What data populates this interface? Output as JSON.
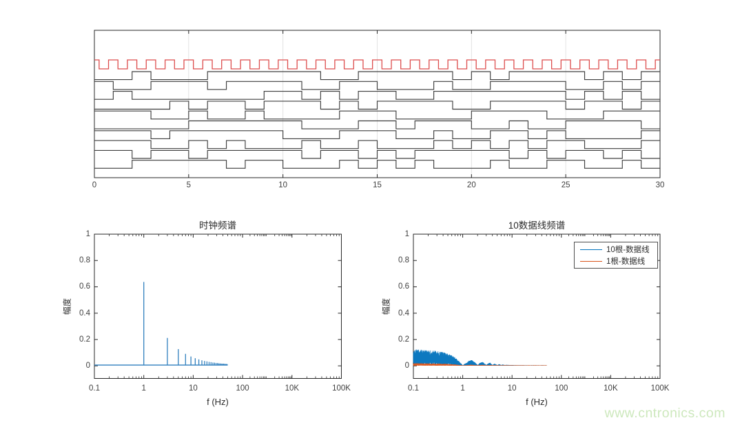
{
  "watermark": "www.cntronics.com",
  "colors": {
    "clock_red": "#dd4c4c",
    "data_black": "#3d3d3d",
    "spectrum_blue": "#2f7fbe",
    "matlab_blue": "#0072BD",
    "matlab_orange": "#D95319",
    "grid_gray": "#e2e2e2",
    "axis_dark": "#262626",
    "tick_text": "#3f3f3f",
    "watermark_green": "#cde8bd"
  },
  "top_plot": {
    "x_tick_labels": [
      "0",
      "5",
      "10",
      "15",
      "20",
      "25",
      "30"
    ],
    "x_ticks": [
      0,
      5,
      10,
      15,
      20,
      25,
      30
    ],
    "x_range": [
      0,
      30
    ],
    "clock": {
      "period": 1,
      "duty": 0.5,
      "rise_phase": 0.75,
      "color": "red"
    },
    "signals_bits": [
      [
        0,
        0,
        1,
        0,
        0,
        0,
        1,
        1,
        1,
        1,
        1,
        1,
        0,
        0,
        1,
        1,
        1,
        1,
        1,
        0,
        1,
        0,
        1,
        1,
        1,
        1,
        0,
        1,
        0,
        1
      ],
      [
        1,
        0,
        0,
        1,
        1,
        1,
        0,
        1,
        1,
        1,
        1,
        0,
        0,
        1,
        1,
        0,
        0,
        0,
        1,
        0,
        0,
        1,
        1,
        1,
        1,
        0,
        0,
        1,
        0,
        1
      ],
      [
        0,
        1,
        0,
        0,
        0,
        0,
        0,
        0,
        0,
        1,
        1,
        0,
        1,
        0,
        1,
        1,
        0,
        0,
        1,
        1,
        1,
        1,
        1,
        1,
        1,
        0,
        1,
        0,
        1,
        0
      ],
      [
        0,
        0,
        0,
        0,
        1,
        0,
        1,
        1,
        0,
        1,
        1,
        1,
        0,
        1,
        0,
        1,
        1,
        1,
        1,
        0,
        0,
        1,
        1,
        1,
        1,
        0,
        1,
        1,
        0,
        1
      ],
      [
        1,
        1,
        1,
        0,
        0,
        1,
        0,
        0,
        1,
        0,
        0,
        0,
        0,
        1,
        1,
        1,
        0,
        0,
        0,
        0,
        1,
        1,
        1,
        1,
        0,
        0,
        0,
        1,
        1,
        1
      ],
      [
        0,
        0,
        0,
        0,
        0,
        1,
        1,
        1,
        1,
        1,
        1,
        0,
        0,
        0,
        1,
        1,
        0,
        1,
        1,
        1,
        0,
        0,
        1,
        0,
        0,
        1,
        1,
        1,
        1,
        0
      ],
      [
        1,
        1,
        1,
        0,
        1,
        1,
        1,
        1,
        1,
        1,
        0,
        0,
        0,
        1,
        1,
        1,
        0,
        0,
        1,
        0,
        0,
        1,
        1,
        0,
        1,
        0,
        0,
        0,
        0,
        1
      ],
      [
        1,
        1,
        1,
        0,
        0,
        1,
        0,
        1,
        0,
        0,
        0,
        1,
        0,
        0,
        1,
        0,
        0,
        0,
        1,
        0,
        1,
        0,
        1,
        0,
        1,
        1,
        0,
        0,
        0,
        1
      ],
      [
        1,
        1,
        0,
        1,
        1,
        0,
        1,
        1,
        1,
        1,
        1,
        0,
        1,
        1,
        0,
        1,
        0,
        1,
        1,
        1,
        1,
        1,
        0,
        1,
        0,
        1,
        1,
        0,
        1,
        0
      ],
      [
        0,
        0,
        1,
        1,
        1,
        1,
        1,
        0,
        1,
        1,
        0,
        0,
        0,
        1,
        0,
        1,
        0,
        1,
        0,
        0,
        0,
        1,
        0,
        0,
        1,
        1,
        0,
        0,
        1,
        0
      ]
    ]
  },
  "left_plot": {
    "title": "时钟频谱",
    "xlabel": "f (Hz)",
    "ylabel": "幅度",
    "x_tick_labels": [
      "0.1",
      "1",
      "10",
      "100",
      "10K",
      "100K"
    ],
    "y_tick_labels": [
      "0",
      "0.2",
      "0.4",
      "0.6",
      "0.8",
      "1"
    ],
    "y_ticks": [
      0,
      0.2,
      0.4,
      0.6,
      0.8,
      1
    ]
  },
  "right_plot": {
    "title": "10数据线频谱",
    "xlabel": "f (Hz)",
    "ylabel": "幅度",
    "x_tick_labels": [
      "0.1",
      "1",
      "10",
      "100",
      "10K",
      "100K"
    ],
    "y_tick_labels": [
      "0",
      "0.2",
      "0.4",
      "0.6",
      "0.8",
      "1"
    ],
    "y_ticks": [
      0,
      0.2,
      0.4,
      0.6,
      0.8,
      1
    ],
    "legend_labels": [
      "10根-数据线",
      "1根-数据线"
    ]
  },
  "chart_data": [
    {
      "type": "line",
      "subplot": "top-waveforms",
      "title": "",
      "xlabel": "",
      "x_ticks": [
        0,
        5,
        10,
        15,
        20,
        25,
        30
      ],
      "xlim": [
        0,
        30
      ],
      "grid": "vertical-light",
      "series_description": "1 red clock (period 1, ~50% duty, high on [k+0.75,k+1.25]) above 10 black random NRZ data lines toggling at integer times, vertically stacked",
      "clock_high_intervals_rule": "high when frac(t+0.25)<0.5",
      "data_bits_per_signal": 30,
      "num_data_signals": 10
    },
    {
      "type": "stem",
      "subplot": "bottom-left",
      "title": "时钟频谱",
      "xlabel": "f (Hz)",
      "ylabel": "幅度",
      "x_scale": "log",
      "x_tick_labels": [
        "0.1",
        "1",
        "10",
        "100",
        "10K",
        "100K"
      ],
      "ylim": [
        -0.1,
        1
      ],
      "y_ticks": [
        0,
        0.2,
        0.4,
        0.6,
        0.8,
        1
      ],
      "harmonics_f_hz": [
        1,
        3,
        5,
        7,
        9,
        11,
        13,
        15,
        17,
        19,
        21,
        23,
        25,
        27,
        29,
        31,
        33,
        35,
        37,
        39,
        41,
        43,
        45,
        47,
        49
      ],
      "harmonics_amplitude": [
        0.637,
        0.212,
        0.127,
        0.091,
        0.071,
        0.058,
        0.049,
        0.042,
        0.037,
        0.034,
        0.03,
        0.028,
        0.025,
        0.024,
        0.022,
        0.021,
        0.019,
        0.018,
        0.017,
        0.016,
        0.016,
        0.015,
        0.014,
        0.014,
        0.013
      ],
      "noise_floor": 0.006,
      "floor_extent_hz": [
        0.1,
        50
      ]
    },
    {
      "type": "line",
      "subplot": "bottom-right",
      "title": "10数据线频谱",
      "xlabel": "f (Hz)",
      "ylabel": "幅度",
      "x_scale": "log",
      "x_tick_labels": [
        "0.1",
        "1",
        "10",
        "100",
        "10K",
        "100K"
      ],
      "ylim": [
        -0.1,
        1
      ],
      "y_ticks": [
        0,
        0.2,
        0.4,
        0.6,
        0.8,
        1
      ],
      "legend_position": "top-right",
      "series": [
        {
          "name": "10根-数据线",
          "color": "#0072BD",
          "style": "dense noisy band, sinc-shaped envelope with nulls at integer Hz, ends at 50 Hz",
          "envelope_points": [
            [
              0.1,
              0.095
            ],
            [
              0.15,
              0.092
            ],
            [
              0.2,
              0.09
            ],
            [
              0.3,
              0.085
            ],
            [
              0.4,
              0.078
            ],
            [
              0.5,
              0.07
            ],
            [
              0.6,
              0.06
            ],
            [
              0.7,
              0.048
            ],
            [
              0.8,
              0.034
            ],
            [
              0.9,
              0.018
            ],
            [
              0.97,
              0.007
            ],
            [
              1.0,
              0.004
            ],
            [
              1.1,
              0.012
            ],
            [
              1.3,
              0.028
            ],
            [
              1.5,
              0.034
            ],
            [
              1.7,
              0.026
            ],
            [
              1.9,
              0.012
            ],
            [
              2.0,
              0.005
            ],
            [
              2.2,
              0.016
            ],
            [
              2.5,
              0.024
            ],
            [
              2.8,
              0.014
            ],
            [
              3.0,
              0.005
            ],
            [
              3.3,
              0.015
            ],
            [
              3.6,
              0.018
            ],
            [
              3.9,
              0.008
            ],
            [
              4.0,
              0.005
            ],
            [
              4.4,
              0.013
            ],
            [
              4.8,
              0.008
            ],
            [
              5.0,
              0.004
            ],
            [
              5.5,
              0.01
            ],
            [
              6.0,
              0.005
            ],
            [
              6.5,
              0.008
            ],
            [
              7.0,
              0.005
            ],
            [
              8.0,
              0.006
            ],
            [
              9.0,
              0.005
            ],
            [
              10,
              0.005
            ],
            [
              12,
              0.004
            ],
            [
              15,
              0.004
            ],
            [
              20,
              0.003
            ],
            [
              30,
              0.003
            ],
            [
              40,
              0.003
            ],
            [
              50,
              0.003
            ]
          ]
        },
        {
          "name": "1根-数据线",
          "color": "#D95319",
          "style": "thin noisy band near zero, ends at 50 Hz",
          "envelope_points": [
            [
              0.1,
              0.016
            ],
            [
              0.2,
              0.015
            ],
            [
              0.3,
              0.014
            ],
            [
              0.5,
              0.012
            ],
            [
              0.7,
              0.009
            ],
            [
              0.9,
              0.005
            ],
            [
              1.0,
              0.003
            ],
            [
              1.3,
              0.006
            ],
            [
              1.5,
              0.007
            ],
            [
              1.9,
              0.004
            ],
            [
              2.5,
              0.006
            ],
            [
              3.0,
              0.004
            ],
            [
              4.0,
              0.005
            ],
            [
              5.0,
              0.004
            ],
            [
              7.0,
              0.004
            ],
            [
              10,
              0.004
            ],
            [
              20,
              0.003
            ],
            [
              50,
              0.002
            ]
          ]
        }
      ]
    }
  ]
}
